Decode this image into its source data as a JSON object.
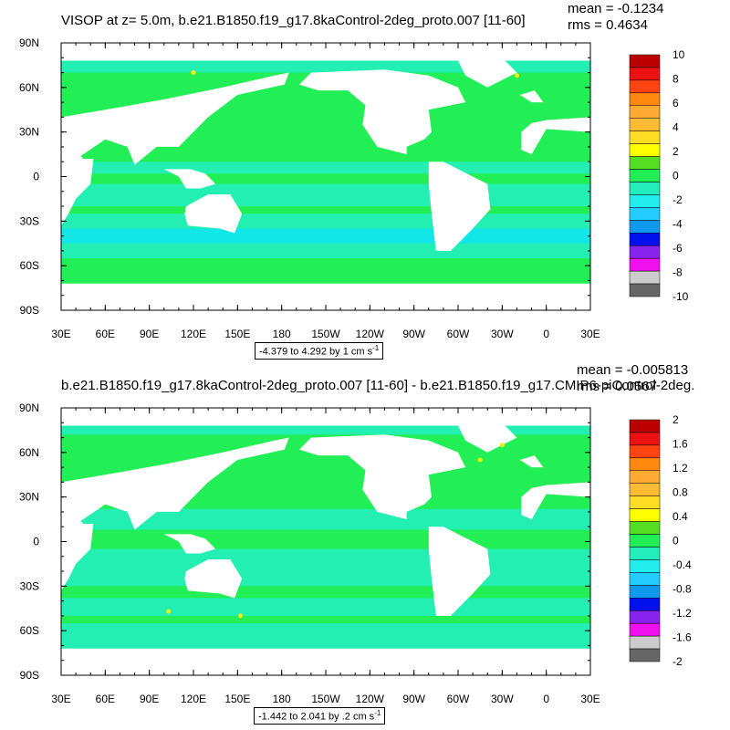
{
  "colors": {
    "land": "#ffffff",
    "ocean_zero": "#22ee55",
    "ocean_negative": "#22eebb",
    "ocean_deep_negative": "#11e6ee",
    "ocean_positive": "#ffee00"
  },
  "palette": [
    "#666666",
    "#cccccc",
    "#ee11ee",
    "#8822ee",
    "#0011ee",
    "#1199ee",
    "#22ccff",
    "#22eeee",
    "#22eebb",
    "#22ee55",
    "#55dd22",
    "#ffff00",
    "#ffdd22",
    "#ffbb33",
    "#ffaa33",
    "#ff8811",
    "#ff4411",
    "#ee1111",
    "#bb0000"
  ],
  "panels": [
    {
      "title": "VISOP at z=   5.0m, b.e21.B1850.f19_g17.8kaControl-2deg_proto.007 [11-60]",
      "stat_mean": "mean = -0.1234",
      "stat_rms": "rms = 0.4634",
      "range_text": "-4.379 to 4.292 by 1 cm s",
      "range_exp": "-1"
    },
    {
      "title": "b.e21.B1850.f19_g17.8kaControl-2deg_proto.007 [11-60] - b.e21.B1850.f19_g17.CMIP6-piControl-2deg.",
      "stat_mean": "mean = -0.005813",
      "stat_rms": "rms = 0.0567",
      "range_text": "-1.442 to 2.041 by .2 cm s",
      "range_exp": "-1"
    }
  ],
  "chart_data": [
    {
      "type": "heatmap",
      "title": "VISOP at z=   5.0m, b.e21.B1850.f19_g17.8kaControl-2deg_proto.007 [11-60]",
      "variable": "VISOP",
      "units": "cm s-1",
      "xlabel": "",
      "ylabel": "",
      "x_ticks": [
        "30E",
        "60E",
        "90E",
        "120E",
        "150E",
        "180",
        "150W",
        "120W",
        "90W",
        "60W",
        "30W",
        "0",
        "30E"
      ],
      "y_ticks": [
        "90N",
        "60N",
        "30N",
        "0",
        "30S",
        "60S",
        "90S"
      ],
      "colorbar_ticks": [
        "10",
        "8",
        "6",
        "4",
        "2",
        "0",
        "-2",
        "-4",
        "-6",
        "-8",
        "-10"
      ],
      "levels": [
        -10,
        -9,
        -8,
        -7,
        -6,
        -5,
        -4,
        -3,
        -2,
        -1,
        0,
        1,
        2,
        3,
        4,
        5,
        6,
        7,
        8,
        9,
        10
      ],
      "mean": -0.1234,
      "rms": 0.4634,
      "min": -4.379,
      "max": 4.292,
      "contour_interval": 1
    },
    {
      "type": "heatmap",
      "title": "b.e21.B1850.f19_g17.8kaControl-2deg_proto.007 [11-60] - b.e21.B1850.f19_g17.CMIP6-piControl-2deg.",
      "variable": "VISOP difference",
      "units": "cm s-1",
      "xlabel": "",
      "ylabel": "",
      "x_ticks": [
        "30E",
        "60E",
        "90E",
        "120E",
        "150E",
        "180",
        "150W",
        "120W",
        "90W",
        "60W",
        "30W",
        "0",
        "30E"
      ],
      "y_ticks": [
        "90N",
        "60N",
        "30N",
        "0",
        "30S",
        "60S",
        "90S"
      ],
      "colorbar_ticks": [
        "2",
        "1.6",
        "1.2",
        "0.8",
        "0.4",
        "0",
        "-0.4",
        "-0.8",
        "-1.2",
        "-1.6",
        "-2"
      ],
      "levels": [
        -2,
        -1.8,
        -1.6,
        -1.4,
        -1.2,
        -1,
        -0.8,
        -0.6,
        -0.4,
        -0.2,
        0,
        0.2,
        0.4,
        0.6,
        0.8,
        1,
        1.2,
        1.4,
        1.6,
        1.8,
        2
      ],
      "mean": -0.005813,
      "rms": 0.0567,
      "min": -1.442,
      "max": 2.041,
      "contour_interval": 0.2
    }
  ]
}
